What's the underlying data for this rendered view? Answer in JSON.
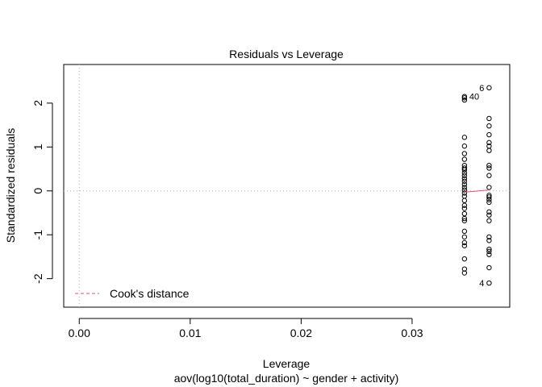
{
  "chart_data": {
    "type": "scatter",
    "title": "Residuals vs Leverage",
    "xlabel": "Leverage",
    "sublabel": "aov(log10(total_duration) ~ gender + activity)",
    "ylabel": "Standardized residuals",
    "xlim": [
      -0.0014,
      0.0388
    ],
    "ylim": [
      -2.65,
      2.88
    ],
    "x_ticks": [
      0.0,
      0.01,
      0.02,
      0.03
    ],
    "x_tick_labels": [
      "0.00",
      "0.01",
      "0.02",
      "0.03"
    ],
    "y_ticks": [
      -2,
      -1,
      0,
      1,
      2
    ],
    "y_tick_labels": [
      "-2",
      "-1",
      "0",
      "1",
      "2"
    ],
    "grid": false,
    "reference_lines": {
      "x": 0,
      "y": 0
    },
    "point_color": "#000000",
    "smooth_color": "#DF536B",
    "cook_color": "#DF536B",
    "legend": {
      "position": "bottom-left",
      "label": "Cook's distance"
    },
    "groups": [
      {
        "leverage": 0.03472,
        "residuals": [
          2.15,
          2.12,
          2.07,
          1.22,
          1.02,
          0.85,
          0.72,
          0.58,
          0.52,
          0.48,
          0.41,
          0.35,
          0.28,
          0.22,
          0.15,
          0.08,
          0.02,
          -0.05,
          -0.12,
          -0.22,
          -0.33,
          -0.4,
          -0.52,
          -0.63,
          -0.68,
          -0.92,
          -1.05,
          -1.18,
          -1.25,
          -1.55,
          -1.78,
          -1.87
        ]
      },
      {
        "leverage": 0.03694,
        "residuals": [
          2.35,
          1.65,
          1.48,
          1.28,
          1.1,
          1.02,
          0.92,
          0.58,
          0.52,
          0.35,
          0.08,
          -0.1,
          -0.14,
          -0.2,
          -0.26,
          -0.48,
          -0.55,
          -0.68,
          -1.05,
          -1.13,
          -1.33,
          -1.38,
          -1.45,
          -1.75,
          -2.1
        ]
      }
    ],
    "smooth": {
      "x": [
        0.03472,
        0.03694
      ],
      "y": [
        -0.03,
        0.02
      ]
    },
    "point_labels": [
      {
        "text": "40",
        "x": 0.03472,
        "y": 2.15,
        "side": "right"
      },
      {
        "text": "6",
        "x": 0.03694,
        "y": 2.35,
        "side": "left"
      },
      {
        "text": "4",
        "x": 0.03694,
        "y": -2.1,
        "side": "left"
      }
    ]
  }
}
